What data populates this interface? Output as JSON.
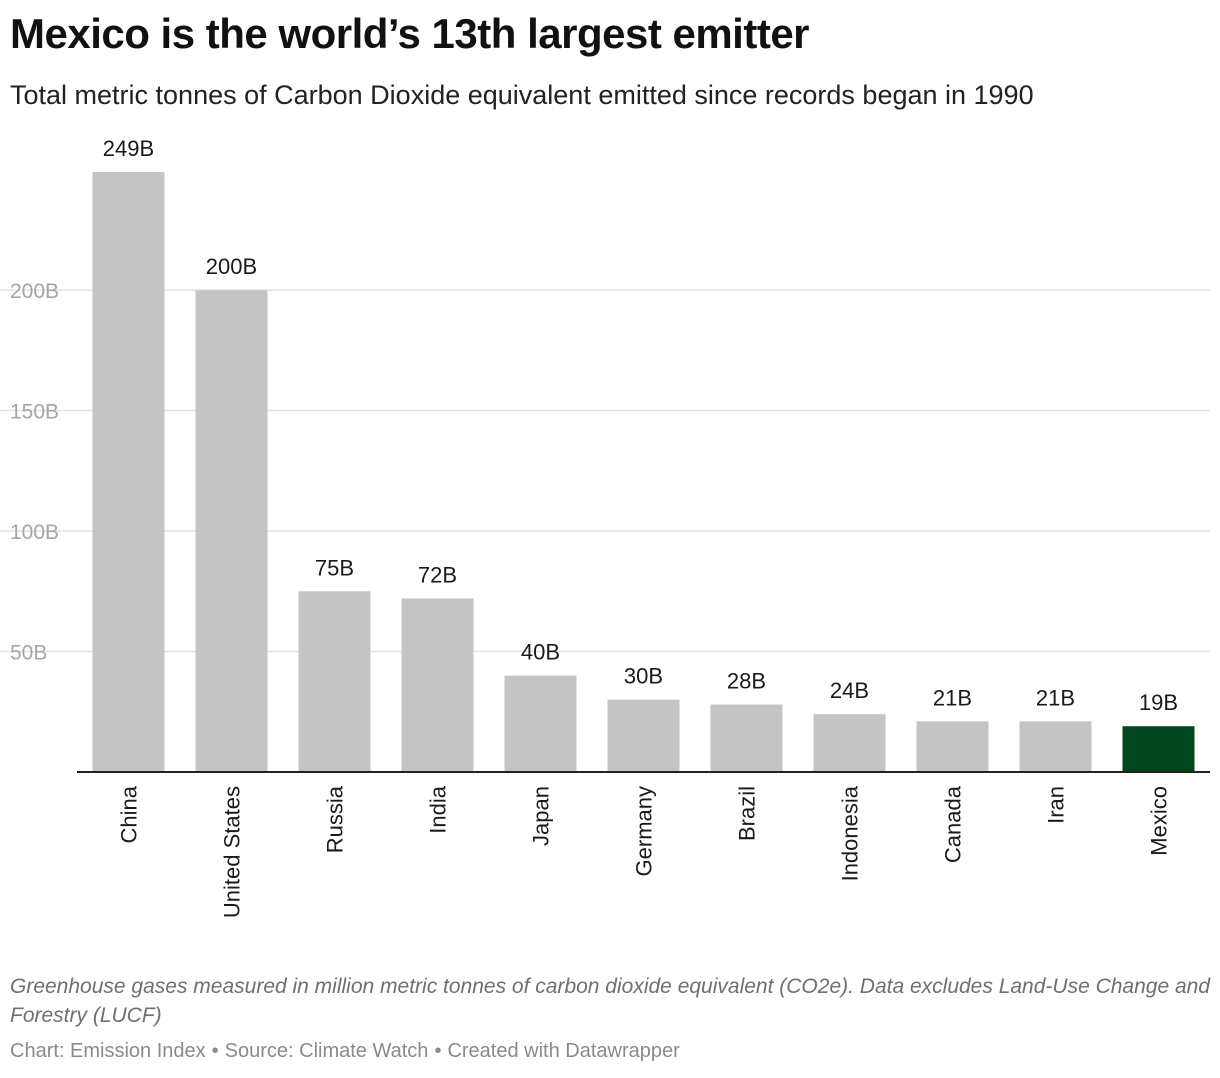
{
  "header": {
    "title": "Mexico is the world’s 13th largest emitter",
    "subtitle": "Total metric tonnes of Carbon Dioxide equivalent emitted since records began in 1990"
  },
  "chart_data": {
    "type": "bar",
    "categories": [
      "China",
      "United States",
      "Russia",
      "India",
      "Japan",
      "Germany",
      "Brazil",
      "Indonesia",
      "Canada",
      "Iran",
      "Mexico"
    ],
    "values": [
      249,
      200,
      75,
      72,
      40,
      30,
      28,
      24,
      21,
      21,
      19
    ],
    "value_labels": [
      "249B",
      "200B",
      "75B",
      "72B",
      "40B",
      "30B",
      "28B",
      "24B",
      "21B",
      "21B",
      "19B"
    ],
    "highlight": "Mexico",
    "colors": {
      "bar": "#c4c4c4",
      "highlight": "#00471f",
      "grid": "#e2e2e2",
      "axis": "#222222",
      "tick_text": "#a5a5a5"
    },
    "ylim": [
      0,
      249
    ],
    "yticks": [
      50,
      100,
      150,
      200
    ],
    "ytick_labels": [
      "50B",
      "100B",
      "150B",
      "200B"
    ],
    "grid": true,
    "xlabel": "",
    "ylabel": ""
  },
  "footer": {
    "note": "Greenhouse gases measured in million metric tonnes of carbon dioxide equivalent (CO2e). Data excludes Land-Use Change and Forestry (LUCF)",
    "credit_chart": "Chart: Emission Index",
    "credit_source": "Source: Climate Watch",
    "credit_tool": "Created with Datawrapper",
    "separator": "•"
  }
}
